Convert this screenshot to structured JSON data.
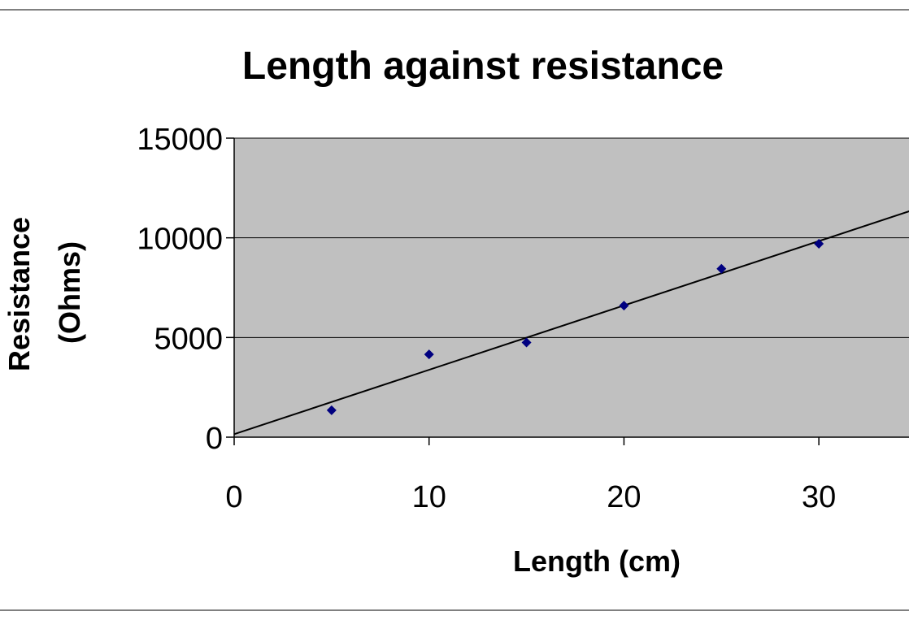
{
  "chart_data": {
    "type": "scatter",
    "title": "Length against resistance",
    "xlabel": "Length (cm)",
    "ylabel": [
      "Resistance",
      "(Ohms)"
    ],
    "xlim": [
      0,
      35
    ],
    "ylim": [
      0,
      15000
    ],
    "x_ticks": [
      "0",
      "10",
      "20",
      "30"
    ],
    "y_ticks": [
      "0",
      "5000",
      "10000",
      "15000"
    ],
    "grid": "horizontal",
    "plot_background": "#c0c0c0",
    "point_color": "#000080",
    "series": [
      {
        "x": [
          5,
          10,
          15,
          20,
          25,
          30
        ],
        "y": [
          1350,
          4150,
          4750,
          6600,
          8450,
          9700
        ]
      }
    ],
    "trendline": {
      "x": [
        0,
        35
      ],
      "y": [
        150,
        11450
      ]
    }
  }
}
